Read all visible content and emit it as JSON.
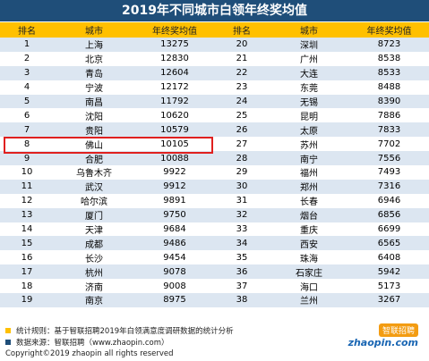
{
  "title": "2019年不同城市白领年终奖均值",
  "table": {
    "header": [
      "排名",
      "城市",
      "年终奖均值",
      "排名",
      "城市",
      "年终奖均值"
    ],
    "rows": [
      [
        1,
        "上海",
        13275,
        20,
        "深圳",
        8723
      ],
      [
        2,
        "北京",
        12830,
        21,
        "广州",
        8538
      ],
      [
        3,
        "青岛",
        12604,
        22,
        "大连",
        8533
      ],
      [
        4,
        "宁波",
        12172,
        23,
        "东莞",
        8488
      ],
      [
        5,
        "南昌",
        11792,
        24,
        "无锡",
        8390
      ],
      [
        6,
        "沈阳",
        10620,
        25,
        "昆明",
        7886
      ],
      [
        7,
        "贵阳",
        10579,
        26,
        "太原",
        7833
      ],
      [
        8,
        "佛山",
        10105,
        27,
        "苏州",
        7702
      ],
      [
        9,
        "合肥",
        10088,
        28,
        "南宁",
        7556
      ],
      [
        10,
        "乌鲁木齐",
        9922,
        29,
        "福州",
        7493
      ],
      [
        11,
        "武汉",
        9912,
        30,
        "郑州",
        7316
      ],
      [
        12,
        "哈尔滨",
        9891,
        31,
        "长春",
        6946
      ],
      [
        13,
        "厦门",
        9750,
        32,
        "烟台",
        6856
      ],
      [
        14,
        "天津",
        9684,
        33,
        "重庆",
        6699
      ],
      [
        15,
        "成都",
        9486,
        34,
        "西安",
        6565
      ],
      [
        16,
        "长沙",
        9454,
        35,
        "珠海",
        6408
      ],
      [
        17,
        "杭州",
        9078,
        36,
        "石家庄",
        5942
      ],
      [
        18,
        "济南",
        9008,
        37,
        "海口",
        5173
      ],
      [
        19,
        "南京",
        8975,
        38,
        "兰州",
        3267
      ]
    ]
  },
  "footer": {
    "rule": "统计规则：基于智联招聘2019年白领满意度调研数据的统计分析",
    "source": "数据来源：智联招聘（www.zhaopin.com）",
    "copyright": "Copyright©2019 zhaopin all rights reserved"
  },
  "logo": {
    "name": "智联招聘",
    "domain": "zhaopin.com"
  }
}
